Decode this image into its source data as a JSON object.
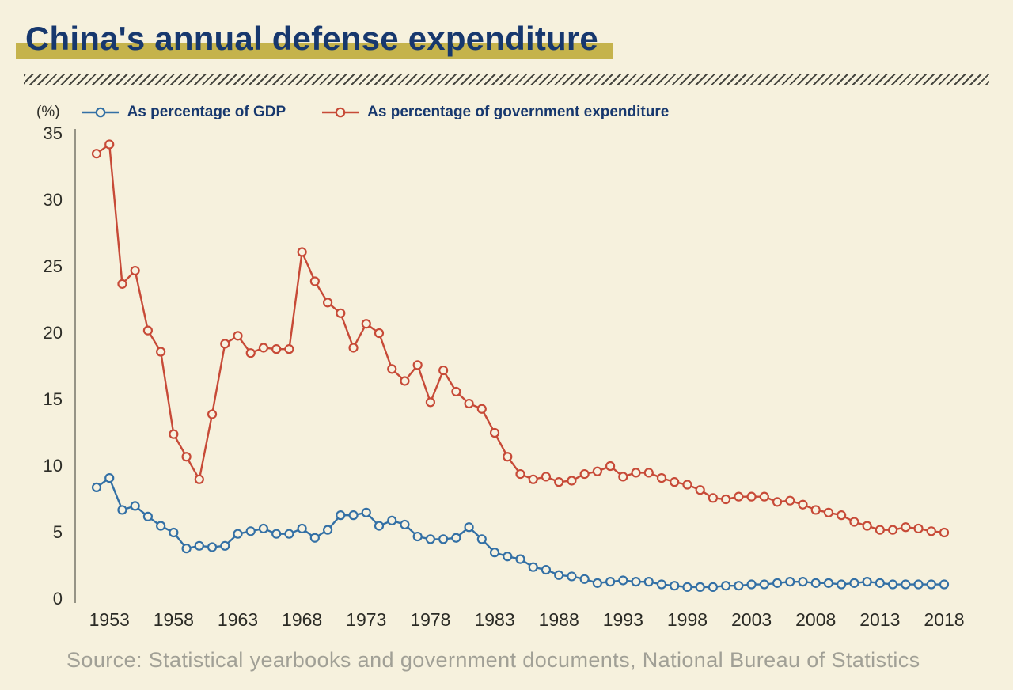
{
  "page": {
    "title": "China's annual defense expenditure",
    "unit_label": "(%)",
    "source": "Source: Statistical yearbooks and government documents, National Bureau of Statistics"
  },
  "colors": {
    "background": "#f6f1dd",
    "title": "#17386e",
    "title_highlight": "#c5b34c",
    "gdp_series": "#3370a5",
    "gov_series": "#c74a37",
    "axis_text": "#2e2e28",
    "source_text": "#a1a096"
  },
  "chart_data": {
    "type": "line",
    "title": "China's annual defense expenditure",
    "xlabel": "",
    "ylabel": "(%)",
    "xlim": [
      1952,
      2018
    ],
    "ylim": [
      0,
      35
    ],
    "grid": false,
    "legend_position": "top",
    "marker": "open-circle",
    "xticks": [
      1953,
      1958,
      1963,
      1968,
      1973,
      1978,
      1983,
      1988,
      1993,
      1998,
      2003,
      2008,
      2013,
      2018
    ],
    "yticks": [
      0,
      5,
      10,
      15,
      20,
      25,
      30,
      35
    ],
    "x": [
      1952,
      1953,
      1954,
      1955,
      1956,
      1957,
      1958,
      1959,
      1960,
      1961,
      1962,
      1963,
      1964,
      1965,
      1966,
      1967,
      1968,
      1969,
      1970,
      1971,
      1972,
      1973,
      1974,
      1975,
      1976,
      1977,
      1978,
      1979,
      1980,
      1981,
      1982,
      1983,
      1984,
      1985,
      1986,
      1987,
      1988,
      1989,
      1990,
      1991,
      1992,
      1993,
      1994,
      1995,
      1996,
      1997,
      1998,
      1999,
      2000,
      2001,
      2002,
      2003,
      2004,
      2005,
      2006,
      2007,
      2008,
      2009,
      2010,
      2011,
      2012,
      2013,
      2014,
      2015,
      2016,
      2017,
      2018
    ],
    "series": [
      {
        "name": "As percentage of GDP",
        "color": "#3370a5",
        "values": [
          8.4,
          9.1,
          6.7,
          7.0,
          6.2,
          5.5,
          5.0,
          3.8,
          4.0,
          3.9,
          4.0,
          4.9,
          5.1,
          5.3,
          4.9,
          4.9,
          5.3,
          4.6,
          5.2,
          6.3,
          6.3,
          6.5,
          5.5,
          5.9,
          5.6,
          4.7,
          4.5,
          4.5,
          4.6,
          5.4,
          4.5,
          3.5,
          3.2,
          3.0,
          2.4,
          2.2,
          1.8,
          1.7,
          1.5,
          1.2,
          1.3,
          1.4,
          1.3,
          1.3,
          1.1,
          1.0,
          0.9,
          0.9,
          0.9,
          1.0,
          1.0,
          1.1,
          1.1,
          1.2,
          1.3,
          1.3,
          1.2,
          1.2,
          1.1,
          1.2,
          1.3,
          1.2,
          1.1,
          1.1,
          1.1,
          1.1,
          1.1
        ]
      },
      {
        "name": "As percentage of government expenditure",
        "color": "#c74a37",
        "values": [
          33.5,
          34.2,
          23.7,
          24.7,
          20.2,
          18.6,
          12.4,
          10.7,
          9.0,
          13.9,
          19.2,
          19.8,
          18.5,
          18.9,
          18.8,
          18.8,
          26.1,
          23.9,
          22.3,
          21.5,
          18.9,
          20.7,
          20.0,
          17.3,
          16.4,
          17.6,
          14.8,
          17.2,
          15.6,
          14.7,
          14.3,
          12.5,
          10.7,
          9.4,
          9.0,
          9.2,
          8.8,
          8.9,
          9.4,
          9.6,
          10.0,
          9.2,
          9.5,
          9.5,
          9.1,
          8.8,
          8.6,
          8.2,
          7.6,
          7.5,
          7.7,
          7.7,
          7.7,
          7.3,
          7.4,
          7.1,
          6.7,
          6.5,
          6.3,
          5.8,
          5.5,
          5.2,
          5.2,
          5.4,
          5.3,
          5.1,
          5.0
        ]
      }
    ]
  }
}
